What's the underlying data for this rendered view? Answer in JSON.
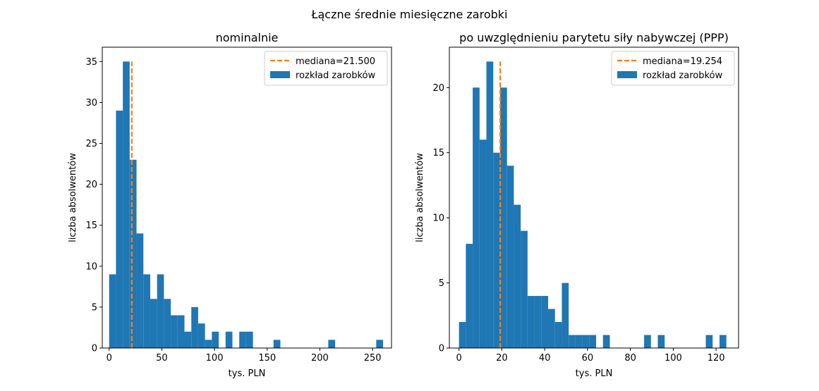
{
  "figure": {
    "suptitle": "Łączne średnie miesięczne zarobki"
  },
  "colors": {
    "bar": "#1f77b4",
    "median": "#ff7f0e"
  },
  "chart_data": [
    {
      "type": "bar",
      "title": "nominalnie",
      "xlabel": "tys. PLN",
      "ylabel": "liczba absolwentów",
      "xlim": [
        -6.5,
        268.0
      ],
      "ylim": [
        0,
        36.75
      ],
      "xticks": [
        0,
        50,
        100,
        150,
        200,
        250
      ],
      "yticks": [
        0,
        5,
        10,
        15,
        20,
        25,
        30,
        35
      ],
      "bin_edges": [
        0,
        6.5,
        13,
        19.5,
        26,
        32.5,
        39,
        45.5,
        52,
        58.5,
        65,
        71.5,
        78,
        84.5,
        91,
        97.5,
        104,
        110.5,
        117,
        123.5,
        130,
        136.5,
        143,
        149.5,
        156,
        162.5,
        169,
        175.5,
        182,
        188.5,
        195,
        201.5,
        208,
        214.5,
        221,
        227.5,
        234,
        240.5,
        247,
        253.5,
        260
      ],
      "values": [
        9,
        29,
        35,
        23,
        14,
        9,
        6,
        9,
        6,
        4,
        4,
        2,
        5,
        3,
        1,
        2,
        0,
        2,
        0,
        2,
        2,
        0,
        0,
        0,
        1,
        0,
        0,
        0,
        0,
        0,
        0,
        0,
        1,
        0,
        0,
        0,
        0,
        0,
        0,
        1
      ],
      "median": 21.5,
      "median_ymax": 35,
      "legend": {
        "placement": "top-right",
        "entries": [
          "mediana=21.500",
          "rozkład zarobków"
        ]
      },
      "grid": false
    },
    {
      "type": "bar",
      "title": "po uwzględnieniu parytetu siły nabywczej (PPP)",
      "xlabel": "tys. PLN",
      "ylabel": "liczba absolwentów",
      "xlim": [
        -4.5,
        130.5
      ],
      "ylim": [
        0,
        23.1
      ],
      "xticks": [
        0,
        20,
        40,
        60,
        80,
        100,
        120
      ],
      "yticks": [
        0,
        5,
        10,
        15,
        20
      ],
      "bin_edges": [
        0,
        3.2,
        6.4,
        9.6,
        12.8,
        16,
        19.2,
        22.4,
        25.6,
        28.8,
        32,
        35.2,
        38.4,
        41.6,
        44.8,
        48,
        51.2,
        54.4,
        57.6,
        60.8,
        64,
        67.2,
        70.4,
        73.6,
        76.8,
        80,
        83.2,
        86.4,
        89.6,
        92.8,
        96,
        99.2,
        102.4,
        105.6,
        108.8,
        112,
        115.2,
        118.4,
        121.6,
        124.8,
        128
      ],
      "values": [
        2,
        8,
        20,
        16,
        22,
        15,
        20,
        14,
        11,
        9,
        4,
        4,
        4,
        3,
        2,
        5,
        1,
        1,
        1,
        1,
        0,
        1,
        0,
        0,
        0,
        0,
        0,
        1,
        0,
        1,
        0,
        0,
        0,
        0,
        0,
        0,
        1,
        0,
        1,
        0
      ],
      "median": 19.254,
      "median_ymax": 22,
      "legend": {
        "placement": "top-right",
        "entries": [
          "mediana=19.254",
          "rozkład zarobków"
        ]
      },
      "grid": false
    }
  ]
}
